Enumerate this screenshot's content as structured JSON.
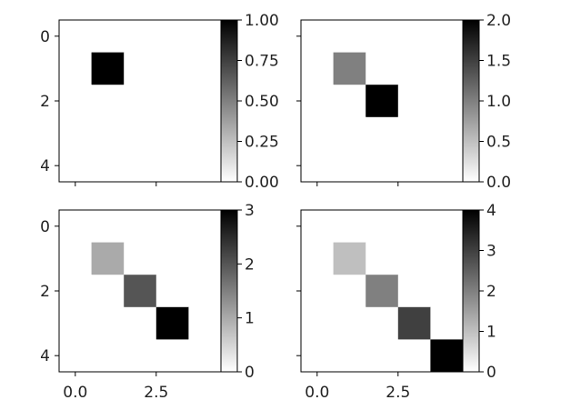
{
  "chart_data": [
    {
      "type": "heatmap",
      "panel": "top-left",
      "colormap": "gray_r",
      "grid": false,
      "xlim": [
        -0.5,
        4.5
      ],
      "ylim": [
        4.5,
        -0.5
      ],
      "matrix": [
        [
          0,
          0,
          0,
          0,
          0
        ],
        [
          0,
          1,
          0,
          0,
          0
        ],
        [
          0,
          0,
          0,
          0,
          0
        ],
        [
          0,
          0,
          0,
          0,
          0
        ],
        [
          0,
          0,
          0,
          0,
          0
        ]
      ],
      "vmin": 0,
      "vmax": 1,
      "x_ticks": [],
      "y_ticks": [
        0,
        2,
        4
      ],
      "y_tick_labels": [
        "0",
        "2",
        "4"
      ],
      "colorbar_ticks": [
        0,
        0.25,
        0.5,
        0.75,
        1
      ],
      "colorbar_tick_labels": [
        "0.00",
        "0.25",
        "0.50",
        "0.75",
        "1.00"
      ],
      "title": "",
      "xlabel": "",
      "ylabel": ""
    },
    {
      "type": "heatmap",
      "panel": "top-right",
      "colormap": "gray_r",
      "grid": false,
      "xlim": [
        -0.5,
        4.5
      ],
      "ylim": [
        4.5,
        -0.5
      ],
      "matrix": [
        [
          0,
          0,
          0,
          0,
          0
        ],
        [
          0,
          1,
          0,
          0,
          0
        ],
        [
          0,
          0,
          2,
          0,
          0
        ],
        [
          0,
          0,
          0,
          0,
          0
        ],
        [
          0,
          0,
          0,
          0,
          0
        ]
      ],
      "vmin": 0,
      "vmax": 2,
      "x_ticks": [],
      "y_ticks": [],
      "y_tick_labels": [],
      "colorbar_ticks": [
        0,
        0.5,
        1,
        1.5,
        2
      ],
      "colorbar_tick_labels": [
        "0.0",
        "0.5",
        "1.0",
        "1.5",
        "2.0"
      ],
      "title": "",
      "xlabel": "",
      "ylabel": ""
    },
    {
      "type": "heatmap",
      "panel": "bottom-left",
      "colormap": "gray_r",
      "grid": false,
      "xlim": [
        -0.5,
        4.5
      ],
      "ylim": [
        4.5,
        -0.5
      ],
      "matrix": [
        [
          0,
          0,
          0,
          0,
          0
        ],
        [
          0,
          1,
          0,
          0,
          0
        ],
        [
          0,
          0,
          2,
          0,
          0
        ],
        [
          0,
          0,
          0,
          3,
          0
        ],
        [
          0,
          0,
          0,
          0,
          0
        ]
      ],
      "vmin": 0,
      "vmax": 3,
      "x_ticks": [
        0,
        2.5
      ],
      "x_tick_labels": [
        "0.0",
        "2.5"
      ],
      "y_ticks": [
        0,
        2,
        4
      ],
      "y_tick_labels": [
        "0",
        "2",
        "4"
      ],
      "colorbar_ticks": [
        0,
        1,
        2,
        3
      ],
      "colorbar_tick_labels": [
        "0",
        "1",
        "2",
        "3"
      ],
      "title": "",
      "xlabel": "",
      "ylabel": ""
    },
    {
      "type": "heatmap",
      "panel": "bottom-right",
      "colormap": "gray_r",
      "grid": false,
      "xlim": [
        -0.5,
        4.5
      ],
      "ylim": [
        4.5,
        -0.5
      ],
      "matrix": [
        [
          0,
          0,
          0,
          0,
          0
        ],
        [
          0,
          1,
          0,
          0,
          0
        ],
        [
          0,
          0,
          2,
          0,
          0
        ],
        [
          0,
          0,
          0,
          3,
          0
        ],
        [
          0,
          0,
          0,
          0,
          4
        ]
      ],
      "vmin": 0,
      "vmax": 4,
      "x_ticks": [
        0,
        2.5
      ],
      "x_tick_labels": [
        "0.0",
        "2.5"
      ],
      "y_ticks": [],
      "y_tick_labels": [],
      "colorbar_ticks": [
        0,
        1,
        2,
        3,
        4
      ],
      "colorbar_tick_labels": [
        "0",
        "1",
        "2",
        "3",
        "4"
      ],
      "title": "",
      "xlabel": "",
      "ylabel": ""
    }
  ]
}
